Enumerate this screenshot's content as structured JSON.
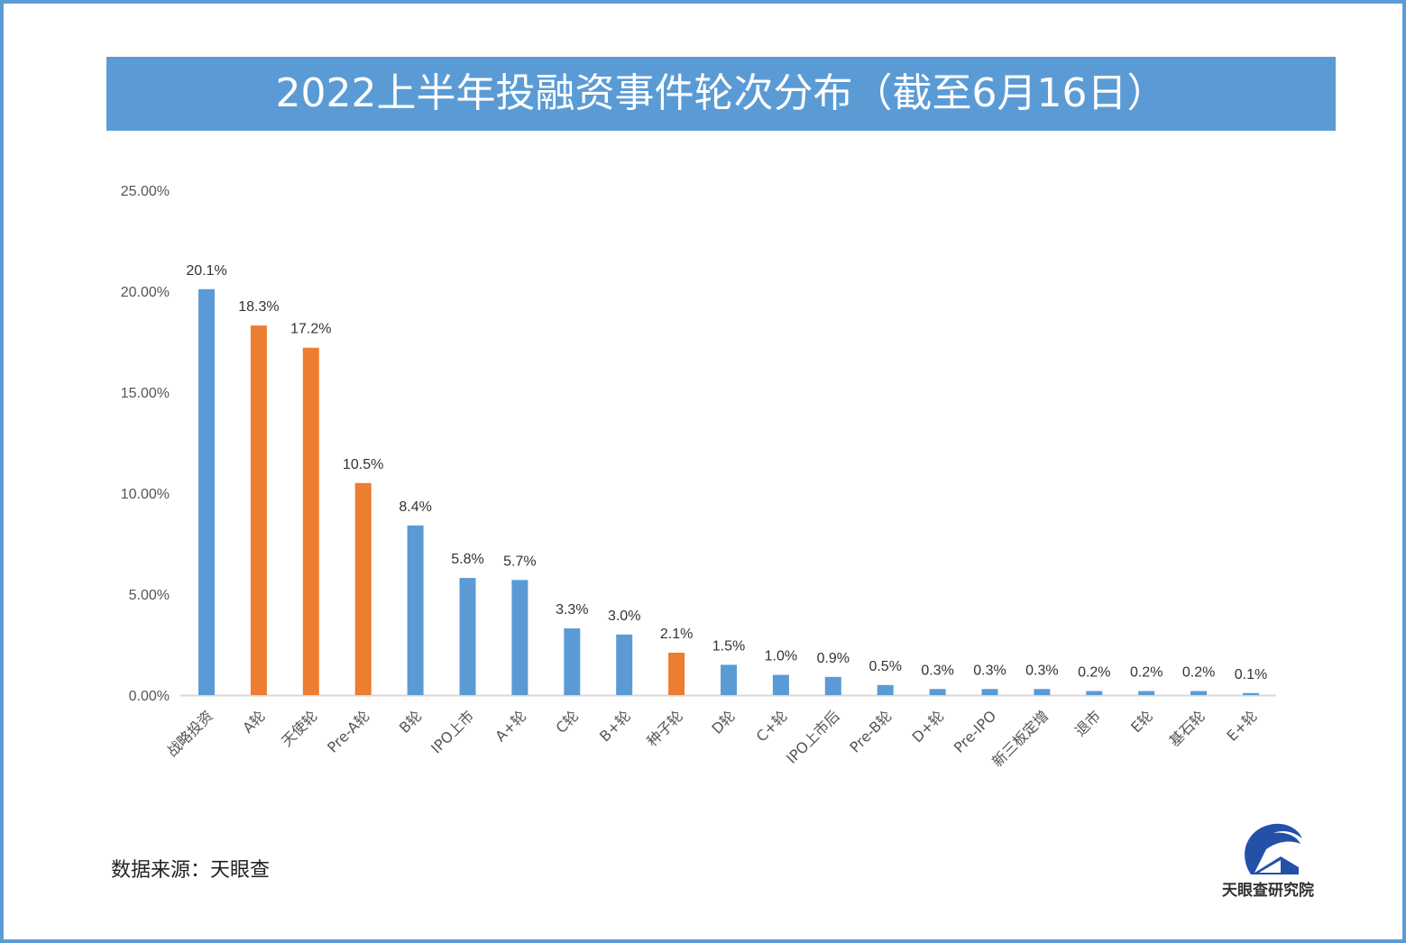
{
  "title": "2022上半年投融资事件轮次分布（截至6月16日）",
  "source": "数据来源：天眼查",
  "logo_text": "天眼查研究院",
  "colors": {
    "blue": "#5B9BD5",
    "orange": "#ED7D31",
    "frame": "#5B9BD5"
  },
  "chart_data": {
    "type": "bar",
    "title": "2022上半年投融资事件轮次分布（截至6月16日）",
    "categories": [
      "战略投资",
      "A轮",
      "天使轮",
      "Pre-A轮",
      "B轮",
      "IPO上市",
      "A+轮",
      "C轮",
      "B+轮",
      "种子轮",
      "D轮",
      "C+轮",
      "IPO上市后",
      "Pre-B轮",
      "D+轮",
      "Pre-IPO",
      "新三板定增",
      "退市",
      "E轮",
      "基石轮",
      "E+轮"
    ],
    "values": [
      20.1,
      18.3,
      17.2,
      10.5,
      8.4,
      5.8,
      5.7,
      3.3,
      3.0,
      2.1,
      1.5,
      1.0,
      0.9,
      0.5,
      0.3,
      0.3,
      0.3,
      0.2,
      0.2,
      0.2,
      0.1
    ],
    "data_labels": [
      "20.1%",
      "18.3%",
      "17.2%",
      "10.5%",
      "8.4%",
      "5.8%",
      "5.7%",
      "3.3%",
      "3.0%",
      "2.1%",
      "1.5%",
      "1.0%",
      "0.9%",
      "0.5%",
      "0.3%",
      "0.3%",
      "0.3%",
      "0.2%",
      "0.2%",
      "0.2%",
      "0.1%"
    ],
    "highlighted": [
      "A轮",
      "天使轮",
      "Pre-A轮",
      "种子轮"
    ],
    "yticks": [
      "0.00%",
      "5.00%",
      "10.00%",
      "15.00%",
      "20.00%",
      "25.00%"
    ],
    "ylim": [
      0,
      25
    ],
    "xlabel": "",
    "ylabel": "",
    "grid": false,
    "legend": "none"
  }
}
